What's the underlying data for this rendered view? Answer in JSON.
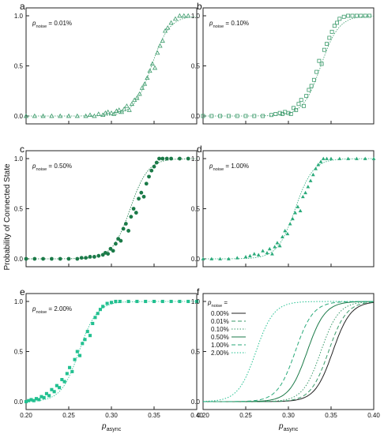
{
  "figure": {
    "ylabel": "Probability of Connected State",
    "xlabel_main": "p",
    "xlabel_sub": "async",
    "x_tick_labels": [
      "0.20",
      "0.25",
      "0.30",
      "0.35",
      "0.40"
    ],
    "y_tick_labels": [
      "0.0",
      "0.5",
      "1.0"
    ],
    "legend_title_main": "p",
    "legend_title_sub": "noise",
    "legend_title_suffix": " ="
  },
  "chart_data": [
    {
      "panel": "a",
      "type": "scatter",
      "label_main": "p",
      "label_sub": "noise",
      "label_value": " = 0.01%",
      "x_range": [
        0.2,
        0.4
      ],
      "y_range": [
        0,
        1
      ],
      "color": "#3a9a6a",
      "marker": "triangle-open",
      "x": [
        0.2,
        0.21,
        0.22,
        0.23,
        0.24,
        0.25,
        0.26,
        0.27,
        0.275,
        0.28,
        0.285,
        0.29,
        0.293,
        0.296,
        0.3,
        0.303,
        0.306,
        0.309,
        0.312,
        0.315,
        0.318,
        0.321,
        0.324,
        0.327,
        0.33,
        0.333,
        0.336,
        0.339,
        0.342,
        0.345,
        0.348,
        0.351,
        0.354,
        0.357,
        0.36,
        0.363,
        0.366,
        0.37,
        0.375,
        0.38,
        0.385,
        0.39
      ],
      "y": [
        0.0,
        0.0,
        0.0,
        0.0,
        0.0,
        0.0,
        0.0,
        0.0,
        0.01,
        0.0,
        0.02,
        0.01,
        0.03,
        0.04,
        0.03,
        0.02,
        0.05,
        0.06,
        0.04,
        0.07,
        0.1,
        0.06,
        0.12,
        0.16,
        0.18,
        0.22,
        0.28,
        0.32,
        0.38,
        0.45,
        0.52,
        0.48,
        0.63,
        0.7,
        0.75,
        0.85,
        0.88,
        0.93,
        0.97,
        1.0,
        1.0,
        1.0
      ],
      "fit": {
        "center": 0.347,
        "width": 0.0105
      }
    },
    {
      "panel": "b",
      "type": "scatter",
      "label_main": "p",
      "label_sub": "noise",
      "label_value": " = 0.10%",
      "x_range": [
        0.2,
        0.4
      ],
      "y_range": [
        0,
        1
      ],
      "color": "#3a9a6a",
      "marker": "square-open",
      "x": [
        0.2,
        0.21,
        0.22,
        0.23,
        0.24,
        0.25,
        0.26,
        0.27,
        0.28,
        0.285,
        0.29,
        0.293,
        0.296,
        0.3,
        0.303,
        0.306,
        0.309,
        0.312,
        0.315,
        0.318,
        0.321,
        0.324,
        0.327,
        0.33,
        0.333,
        0.336,
        0.339,
        0.342,
        0.345,
        0.348,
        0.351,
        0.354,
        0.357,
        0.36,
        0.365,
        0.37,
        0.375,
        0.38,
        0.385,
        0.39,
        0.395
      ],
      "y": [
        0.0,
        0.0,
        0.0,
        0.0,
        0.0,
        0.0,
        0.0,
        0.0,
        0.01,
        0.02,
        0.03,
        0.02,
        0.04,
        0.03,
        0.02,
        0.08,
        0.06,
        0.12,
        0.16,
        0.1,
        0.2,
        0.26,
        0.3,
        0.36,
        0.44,
        0.55,
        0.52,
        0.66,
        0.72,
        0.78,
        0.84,
        0.9,
        0.93,
        0.97,
        0.99,
        1.0,
        1.0,
        1.0,
        1.0,
        1.0,
        1.0
      ],
      "fit": {
        "center": 0.338,
        "width": 0.0105
      }
    },
    {
      "panel": "c",
      "type": "scatter",
      "label_main": "p",
      "label_sub": "noise",
      "label_value": " = 0.50%",
      "x_range": [
        0.2,
        0.4
      ],
      "y_range": [
        0,
        1
      ],
      "color": "#1b7a48",
      "marker": "circle-filled",
      "x": [
        0.2,
        0.21,
        0.22,
        0.23,
        0.24,
        0.25,
        0.26,
        0.265,
        0.27,
        0.275,
        0.28,
        0.285,
        0.29,
        0.293,
        0.296,
        0.299,
        0.302,
        0.305,
        0.308,
        0.311,
        0.314,
        0.317,
        0.32,
        0.323,
        0.326,
        0.329,
        0.332,
        0.335,
        0.338,
        0.341,
        0.344,
        0.347,
        0.35,
        0.353,
        0.356,
        0.36,
        0.365,
        0.37,
        0.38,
        0.39
      ],
      "y": [
        0.0,
        0.0,
        0.0,
        0.0,
        0.0,
        0.0,
        0.0,
        0.01,
        0.01,
        0.02,
        0.02,
        0.03,
        0.04,
        0.06,
        0.05,
        0.1,
        0.08,
        0.15,
        0.2,
        0.18,
        0.3,
        0.35,
        0.28,
        0.42,
        0.5,
        0.46,
        0.6,
        0.66,
        0.62,
        0.75,
        0.82,
        0.88,
        0.92,
        0.96,
        1.0,
        1.0,
        1.0,
        1.0,
        1.0,
        1.0
      ],
      "fit": {
        "center": 0.322,
        "width": 0.0105
      }
    },
    {
      "panel": "d",
      "type": "scatter",
      "label_main": "p",
      "label_sub": "noise",
      "label_value": " = 1.00%",
      "x_range": [
        0.2,
        0.4
      ],
      "y_range": [
        0,
        1
      ],
      "color": "#2aaa7a",
      "marker": "triangle-filled",
      "x": [
        0.2,
        0.21,
        0.22,
        0.23,
        0.24,
        0.25,
        0.255,
        0.26,
        0.265,
        0.27,
        0.275,
        0.278,
        0.281,
        0.284,
        0.287,
        0.29,
        0.293,
        0.296,
        0.299,
        0.302,
        0.305,
        0.308,
        0.311,
        0.314,
        0.317,
        0.32,
        0.323,
        0.326,
        0.329,
        0.332,
        0.335,
        0.338,
        0.341,
        0.345,
        0.35,
        0.36,
        0.37,
        0.38,
        0.39,
        0.4
      ],
      "y": [
        0.0,
        0.0,
        0.0,
        0.0,
        0.01,
        0.02,
        0.03,
        0.05,
        0.04,
        0.08,
        0.06,
        0.1,
        0.05,
        0.12,
        0.16,
        0.13,
        0.22,
        0.28,
        0.25,
        0.35,
        0.4,
        0.46,
        0.52,
        0.48,
        0.62,
        0.66,
        0.72,
        0.78,
        0.84,
        0.9,
        0.94,
        0.97,
        1.0,
        1.0,
        1.0,
        1.0,
        1.0,
        1.0,
        1.0,
        1.0
      ],
      "fit": {
        "center": 0.308,
        "width": 0.0105
      }
    },
    {
      "panel": "e",
      "type": "scatter",
      "label_main": "p",
      "label_sub": "noise",
      "label_value": " = 2.00%",
      "x_range": [
        0.2,
        0.4
      ],
      "y_range": [
        0,
        1
      ],
      "color": "#22c090",
      "marker": "square-filled",
      "x": [
        0.2,
        0.203,
        0.206,
        0.209,
        0.212,
        0.215,
        0.218,
        0.221,
        0.224,
        0.227,
        0.23,
        0.233,
        0.236,
        0.239,
        0.242,
        0.245,
        0.248,
        0.251,
        0.254,
        0.257,
        0.26,
        0.263,
        0.266,
        0.269,
        0.272,
        0.275,
        0.278,
        0.281,
        0.284,
        0.287,
        0.29,
        0.295,
        0.3,
        0.305,
        0.31,
        0.32,
        0.33,
        0.34,
        0.35,
        0.36,
        0.37,
        0.38,
        0.39,
        0.4
      ],
      "y": [
        0.0,
        0.01,
        0.02,
        0.01,
        0.03,
        0.02,
        0.05,
        0.04,
        0.08,
        0.06,
        0.12,
        0.1,
        0.16,
        0.14,
        0.22,
        0.2,
        0.28,
        0.34,
        0.3,
        0.42,
        0.5,
        0.46,
        0.58,
        0.62,
        0.7,
        0.66,
        0.78,
        0.84,
        0.88,
        0.92,
        0.95,
        0.98,
        0.99,
        1.0,
        1.0,
        1.0,
        1.0,
        1.0,
        1.0,
        1.0,
        1.0,
        1.0,
        1.0,
        1.0
      ],
      "fit": {
        "center": 0.262,
        "width": 0.0105
      }
    },
    {
      "panel": "f",
      "type": "line",
      "x_range": [
        0.2,
        0.4
      ],
      "y_range": [
        0,
        1
      ],
      "series": [
        {
          "name": "0.00%",
          "center": 0.352,
          "width": 0.0105,
          "color": "#222222",
          "dash": "solid"
        },
        {
          "name": "0.01%",
          "center": 0.347,
          "width": 0.0105,
          "color": "#3a9a6a",
          "dash": "dashed"
        },
        {
          "name": "0.10%",
          "center": 0.338,
          "width": 0.0105,
          "color": "#3a9a6a",
          "dash": "dotted"
        },
        {
          "name": "0.50%",
          "center": 0.322,
          "width": 0.0105,
          "color": "#1b7a48",
          "dash": "solid"
        },
        {
          "name": "1.00%",
          "center": 0.308,
          "width": 0.0105,
          "color": "#2aaa7a",
          "dash": "dashed"
        },
        {
          "name": "2.00%",
          "center": 0.262,
          "width": 0.0105,
          "color": "#22c090",
          "dash": "dotted"
        }
      ]
    }
  ]
}
